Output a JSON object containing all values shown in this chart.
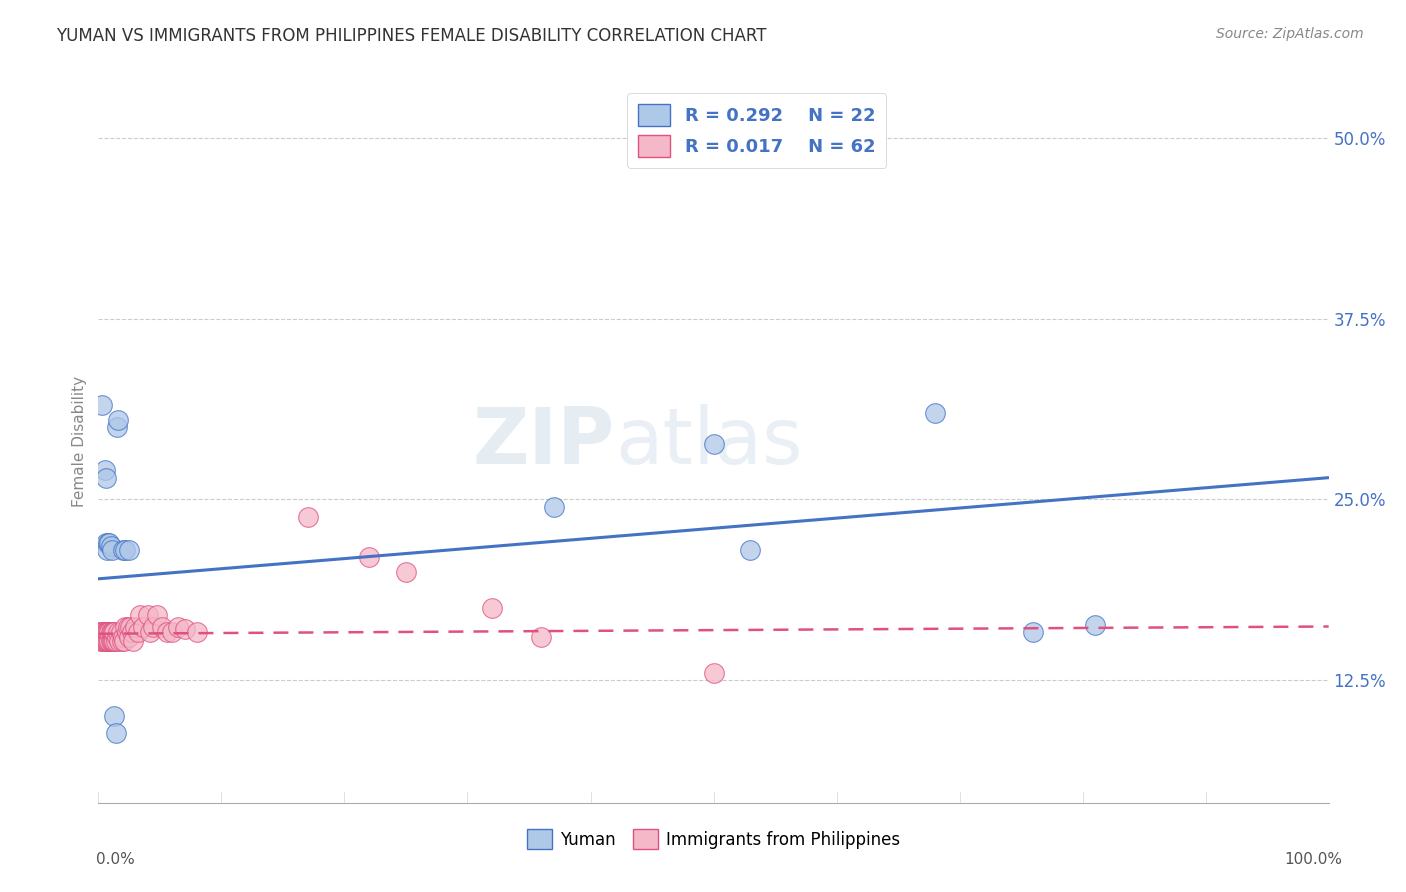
{
  "title": "YUMAN VS IMMIGRANTS FROM PHILIPPINES FEMALE DISABILITY CORRELATION CHART",
  "source": "Source: ZipAtlas.com",
  "ylabel": "Female Disability",
  "yaxis_ticks": [
    0.125,
    0.25,
    0.375,
    0.5
  ],
  "yaxis_labels": [
    "12.5%",
    "25.0%",
    "37.5%",
    "50.0%"
  ],
  "xmin": 0.0,
  "xmax": 1.0,
  "ymin": 0.04,
  "ymax": 0.54,
  "legend_r1": "R = 0.292",
  "legend_n1": "N = 22",
  "legend_r2": "R = 0.017",
  "legend_n2": "N = 62",
  "color_blue": "#aec8e8",
  "color_pink": "#f4b8c8",
  "color_blue_line": "#4472c4",
  "color_pink_line": "#e05080",
  "watermark_zip": "ZIP",
  "watermark_atlas": "atlas",
  "blue_x": [
    0.003,
    0.005,
    0.006,
    0.006,
    0.007,
    0.008,
    0.009,
    0.01,
    0.011,
    0.013,
    0.014,
    0.015,
    0.016,
    0.02,
    0.022,
    0.025,
    0.37,
    0.5,
    0.53,
    0.68,
    0.76,
    0.81
  ],
  "blue_y": [
    0.315,
    0.27,
    0.265,
    0.22,
    0.215,
    0.22,
    0.22,
    0.218,
    0.215,
    0.1,
    0.088,
    0.3,
    0.305,
    0.215,
    0.215,
    0.215,
    0.245,
    0.288,
    0.215,
    0.31,
    0.158,
    0.163
  ],
  "pink_x": [
    0.001,
    0.001,
    0.002,
    0.002,
    0.003,
    0.003,
    0.004,
    0.004,
    0.004,
    0.005,
    0.005,
    0.006,
    0.006,
    0.007,
    0.007,
    0.008,
    0.008,
    0.009,
    0.009,
    0.01,
    0.01,
    0.011,
    0.011,
    0.012,
    0.012,
    0.013,
    0.013,
    0.014,
    0.015,
    0.016,
    0.017,
    0.018,
    0.019,
    0.02,
    0.021,
    0.022,
    0.023,
    0.024,
    0.025,
    0.026,
    0.027,
    0.028,
    0.03,
    0.032,
    0.034,
    0.036,
    0.04,
    0.042,
    0.044,
    0.048,
    0.052,
    0.056,
    0.06,
    0.065,
    0.07,
    0.08,
    0.17,
    0.22,
    0.25,
    0.32,
    0.36,
    0.5
  ],
  "pink_y": [
    0.155,
    0.158,
    0.152,
    0.158,
    0.152,
    0.158,
    0.152,
    0.155,
    0.158,
    0.152,
    0.158,
    0.152,
    0.158,
    0.152,
    0.158,
    0.152,
    0.158,
    0.152,
    0.158,
    0.152,
    0.158,
    0.152,
    0.158,
    0.152,
    0.158,
    0.152,
    0.158,
    0.152,
    0.155,
    0.158,
    0.152,
    0.158,
    0.152,
    0.155,
    0.152,
    0.162,
    0.158,
    0.162,
    0.155,
    0.162,
    0.158,
    0.152,
    0.162,
    0.158,
    0.17,
    0.162,
    0.17,
    0.158,
    0.162,
    0.17,
    0.162,
    0.158,
    0.158,
    0.162,
    0.16,
    0.158,
    0.238,
    0.21,
    0.2,
    0.175,
    0.155,
    0.13
  ],
  "blue_line_x0": 0.0,
  "blue_line_x1": 1.0,
  "blue_line_y0": 0.195,
  "blue_line_y1": 0.265,
  "pink_line_x0": 0.0,
  "pink_line_x1": 1.0,
  "pink_line_y0": 0.157,
  "pink_line_y1": 0.162
}
